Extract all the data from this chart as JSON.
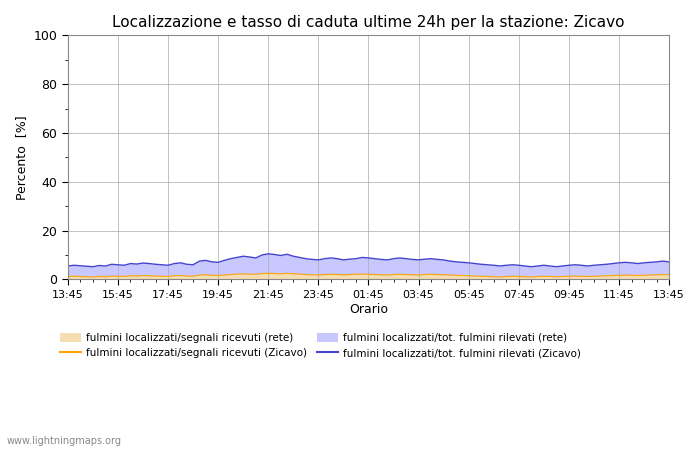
{
  "title": "Localizzazione e tasso di caduta ultime 24h per la stazione: Zicavo",
  "ylabel": "Percento  [%]",
  "xlabel": "Orario",
  "xlim_labels": [
    "13:45",
    "15:45",
    "17:45",
    "19:45",
    "21:45",
    "23:45",
    "01:45",
    "03:45",
    "05:45",
    "07:45",
    "09:45",
    "11:45",
    "13:45"
  ],
  "ylim": [
    0,
    100
  ],
  "yticks": [
    0,
    20,
    40,
    60,
    80,
    100
  ],
  "yticks_minor": [
    10,
    30,
    50,
    70,
    90
  ],
  "background_color": "#ffffff",
  "plot_bg_color": "#ffffff",
  "grid_color": "#aaaaaa",
  "fill_blue_color": "#c8c8ff",
  "fill_tan_color": "#f5deb3",
  "line_orange_color": "#ffa500",
  "line_blue_color": "#4444cc",
  "watermark": "www.lightningmaps.org",
  "legend": [
    {
      "label": "fulmini localizzati/segnali ricevuti (rete)",
      "type": "fill",
      "color": "#f5deb3"
    },
    {
      "label": "fulmini localizzati/segnali ricevuti (Zicavo)",
      "type": "line",
      "color": "#ffa500"
    },
    {
      "label": "fulmini localizzati/tot. fulmini rilevati (rete)",
      "type": "fill",
      "color": "#c8c8ff"
    },
    {
      "label": "fulmini localizzati/tot. fulmini rilevati (Zicavo)",
      "type": "line",
      "color": "#4444cc"
    }
  ],
  "n_points": 97,
  "blue_fill_values": [
    5.5,
    5.8,
    5.6,
    5.4,
    5.2,
    5.7,
    5.5,
    6.2,
    6.0,
    5.8,
    6.5,
    6.3,
    6.7,
    6.5,
    6.2,
    6.0,
    5.8,
    6.5,
    6.8,
    6.2,
    6.0,
    7.5,
    7.8,
    7.2,
    7.0,
    7.8,
    8.5,
    9.0,
    9.5,
    9.2,
    8.8,
    10.0,
    10.5,
    10.2,
    9.8,
    10.3,
    9.5,
    9.0,
    8.5,
    8.2,
    8.0,
    8.5,
    8.8,
    8.5,
    8.0,
    8.3,
    8.5,
    9.0,
    8.8,
    8.5,
    8.2,
    8.0,
    8.5,
    8.8,
    8.5,
    8.2,
    8.0,
    8.3,
    8.5,
    8.2,
    8.0,
    7.5,
    7.2,
    7.0,
    6.8,
    6.5,
    6.2,
    6.0,
    5.8,
    5.5,
    5.8,
    6.0,
    5.8,
    5.5,
    5.2,
    5.5,
    5.8,
    5.5,
    5.2,
    5.5,
    5.8,
    6.0,
    5.8,
    5.5,
    5.8,
    6.0,
    6.2,
    6.5,
    6.8,
    7.0,
    6.8,
    6.5,
    6.8,
    7.0,
    7.2,
    7.5,
    7.2
  ],
  "tan_fill_values": [
    1.2,
    1.3,
    1.2,
    1.1,
    1.0,
    1.2,
    1.1,
    1.4,
    1.3,
    1.2,
    1.5,
    1.4,
    1.6,
    1.5,
    1.4,
    1.3,
    1.2,
    1.5,
    1.6,
    1.4,
    1.3,
    1.8,
    1.9,
    1.7,
    1.6,
    1.8,
    2.0,
    2.2,
    2.3,
    2.2,
    2.1,
    2.4,
    2.5,
    2.4,
    2.3,
    2.5,
    2.3,
    2.2,
    2.0,
    1.9,
    1.8,
    2.0,
    2.1,
    2.0,
    1.9,
    2.0,
    2.1,
    2.2,
    2.1,
    2.0,
    1.9,
    1.8,
    2.0,
    2.1,
    2.0,
    1.9,
    1.8,
    2.0,
    2.1,
    2.0,
    1.9,
    1.8,
    1.7,
    1.6,
    1.5,
    1.4,
    1.3,
    1.2,
    1.1,
    1.0,
    1.2,
    1.3,
    1.2,
    1.1,
    1.0,
    1.2,
    1.3,
    1.2,
    1.1,
    1.2,
    1.3,
    1.4,
    1.3,
    1.2,
    1.3,
    1.4,
    1.5,
    1.6,
    1.7,
    1.8,
    1.7,
    1.6,
    1.7,
    1.8,
    1.9,
    2.0,
    1.9
  ]
}
